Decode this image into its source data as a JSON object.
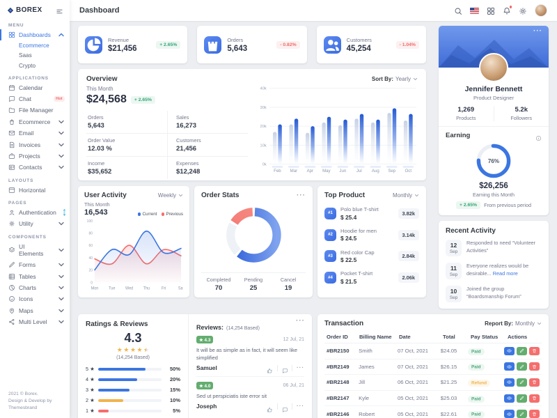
{
  "brand": {
    "name": "BOREX"
  },
  "topbar": {
    "title": "Dashboard"
  },
  "sidebar": {
    "sections": [
      {
        "label": "Menu",
        "items": [
          {
            "label": "Dashboards",
            "icon": "dashboards-icon",
            "active": true,
            "chevron": "up",
            "children": [
              {
                "label": "Ecommerce",
                "active": true
              },
              {
                "label": "Saas"
              },
              {
                "label": "Crypto"
              }
            ]
          }
        ]
      },
      {
        "label": "Applications",
        "items": [
          {
            "label": "Calendar",
            "icon": "calendar-icon"
          },
          {
            "label": "Chat",
            "icon": "chat-icon",
            "badge": "Hot"
          },
          {
            "label": "File Manager",
            "icon": "file-manager-icon"
          },
          {
            "label": "Ecommerce",
            "icon": "ecommerce-icon",
            "chevron": "down"
          },
          {
            "label": "Email",
            "icon": "email-icon",
            "chevron": "down"
          },
          {
            "label": "Invoices",
            "icon": "invoices-icon",
            "chevron": "down"
          },
          {
            "label": "Projects",
            "icon": "projects-icon",
            "chevron": "down"
          },
          {
            "label": "Contacts",
            "icon": "contacts-icon",
            "chevron": "down"
          }
        ]
      },
      {
        "label": "Layouts",
        "items": [
          {
            "label": "Horizontal",
            "icon": "horizontal-icon"
          }
        ]
      },
      {
        "label": "Pages",
        "items": [
          {
            "label": "Authentication",
            "icon": "authentication-icon",
            "count": "8"
          },
          {
            "label": "Utility",
            "icon": "utility-icon",
            "chevron": "down"
          }
        ]
      },
      {
        "label": "Components",
        "items": [
          {
            "label": "UI Elements",
            "icon": "ui-elements-icon",
            "chevron": "down"
          },
          {
            "label": "Forms",
            "icon": "forms-icon",
            "chevron": "down"
          },
          {
            "label": "Tables",
            "icon": "tables-icon",
            "chevron": "down"
          },
          {
            "label": "Charts",
            "icon": "charts-icon",
            "chevron": "down"
          },
          {
            "label": "Icons",
            "icon": "icons-icon",
            "chevron": "down"
          },
          {
            "label": "Maps",
            "icon": "maps-icon",
            "chevron": "down"
          },
          {
            "label": "Multi Level",
            "icon": "multi-level-icon",
            "chevron": "down"
          }
        ]
      }
    ],
    "footer": {
      "line1": "2021 © Borex.",
      "line2": "Design & Develop by Themesbrand"
    }
  },
  "stats": [
    {
      "label": "Revenue",
      "value": "$21,456",
      "delta": "+ 2.65%",
      "trend": "up",
      "icon": "revenue-icon"
    },
    {
      "label": "Orders",
      "value": "5,643",
      "delta": "- 0.82%",
      "trend": "down",
      "icon": "orders-icon"
    },
    {
      "label": "Customers",
      "value": "45,254",
      "delta": "- 1.04%",
      "trend": "down",
      "icon": "customers-icon"
    }
  ],
  "overview": {
    "title": "Overview",
    "sort_label": "Sort By:",
    "sort_value": "Yearly",
    "period_label": "This Month",
    "amount": "$24,568",
    "delta": "+ 2.65%",
    "metrics": [
      {
        "label": "Orders",
        "value": "5,643"
      },
      {
        "label": "Sales",
        "value": "16,273"
      },
      {
        "label": "Order Value",
        "value": "12.03 %"
      },
      {
        "label": "Customers",
        "value": "21,456"
      },
      {
        "label": "Income",
        "value": "$35,652"
      },
      {
        "label": "Expenses",
        "value": "$12,248"
      }
    ]
  },
  "user_activity": {
    "title": "User Activity",
    "filter": "Weekly",
    "period_label": "This Month",
    "value": "16,543"
  },
  "order_stats": {
    "title": "Order Stats",
    "legend": [
      {
        "label": "Completed",
        "value": "70"
      },
      {
        "label": "Pending",
        "value": "25"
      },
      {
        "label": "Cancel",
        "value": "19"
      }
    ]
  },
  "top_products": {
    "title": "Top Product",
    "filter": "Monthly",
    "items": [
      {
        "rank": "#1",
        "name": "Polo blue T-shirt",
        "price": "$ 25.4",
        "sales": "3.82k"
      },
      {
        "rank": "#2",
        "name": "Hoodie for men",
        "price": "$ 24.5",
        "sales": "3.14k"
      },
      {
        "rank": "#3",
        "name": "Red color Cap",
        "price": "$ 22.5",
        "sales": "2.84k"
      },
      {
        "rank": "#4",
        "name": "Pocket T-shirt",
        "price": "$ 21.5",
        "sales": "2.06k"
      }
    ]
  },
  "profile": {
    "name": "Jennifer Bennett",
    "role": "Product Designer",
    "stats": [
      {
        "value": "1,269",
        "label": "Products"
      },
      {
        "value": "5.2k",
        "label": "Followers"
      }
    ],
    "earning": {
      "title": "Earning",
      "percent_label": "76%",
      "amount": "$26,256",
      "caption": "Earning this Month",
      "delta": "+ 2.65%",
      "delta_caption": "From previous period"
    }
  },
  "recent_activity": {
    "title": "Recent Activity",
    "items": [
      {
        "day": "12",
        "month": "Sep",
        "text": "Responded to need “Volunteer Activities”",
        "link": ""
      },
      {
        "day": "11",
        "month": "Sep",
        "text": "Everyone realizes would be desirable... ",
        "link": "Read more"
      },
      {
        "day": "10",
        "month": "Sep",
        "text": "Joined the group “Boardsmanship Forum”",
        "link": ""
      }
    ]
  },
  "ratings": {
    "title": "Ratings & Reviews",
    "average": "4.3",
    "stars": 4.5,
    "based": "(14,254 Based)",
    "distribution": [
      {
        "star": "5",
        "percent": "50%",
        "fill": 0.75,
        "color": "#3b76e1"
      },
      {
        "star": "4",
        "percent": "20%",
        "fill": 0.62,
        "color": "#3b76e1"
      },
      {
        "star": "3",
        "percent": "15%",
        "fill": 0.5,
        "color": "#3b76e1"
      },
      {
        "star": "2",
        "percent": "10%",
        "fill": 0.4,
        "color": "#f1b44c"
      },
      {
        "star": "1",
        "percent": "5%",
        "fill": 0.17,
        "color": "#f56e6e"
      }
    ]
  },
  "reviews": {
    "label": "Reviews:",
    "based": "(14,254 Based)",
    "items": [
      {
        "rating": "4.3",
        "date": "12 Jul, 21",
        "text": "It will be as simple as in fact, it will seem like simplified",
        "author": "Samuel"
      },
      {
        "rating": "4.0",
        "date": "06 Jul, 21",
        "text": "Sed ut perspiciatis iste error sit",
        "author": "Joseph"
      }
    ]
  },
  "transactions": {
    "title": "Transaction",
    "report_label": "Report By:",
    "report_value": "Monthly",
    "columns": [
      "Order ID",
      "Billing Name",
      "Date",
      "Total",
      "Pay Status",
      "Actions"
    ],
    "rows": [
      {
        "id": "#BR2150",
        "name": "Smith",
        "date": "07 Oct, 2021",
        "total": "$24.05",
        "status": "Paid"
      },
      {
        "id": "#BR2149",
        "name": "James",
        "date": "07 Oct, 2021",
        "total": "$26.15",
        "status": "Paid"
      },
      {
        "id": "#BR2148",
        "name": "Jill",
        "date": "06 Oct, 2021",
        "total": "$21.25",
        "status": "Refund"
      },
      {
        "id": "#BR2147",
        "name": "Kyle",
        "date": "05 Oct, 2021",
        "total": "$25.03",
        "status": "Paid"
      },
      {
        "id": "#BR2146",
        "name": "Robert",
        "date": "05 Oct, 2021",
        "total": "$22.61",
        "status": "Paid"
      }
    ]
  },
  "chart_data": [
    {
      "id": "overview-bars",
      "type": "bar",
      "title": "Overview",
      "categories": [
        "Feb",
        "Mar",
        "Apr",
        "May",
        "Jun",
        "Jul",
        "Aug",
        "Sep",
        "Oct"
      ],
      "series": [
        {
          "name": "Previous",
          "values": [
            17000,
            21000,
            16500,
            22000,
            20500,
            24000,
            22000,
            27000,
            23000
          ]
        },
        {
          "name": "Current",
          "values": [
            21000,
            24000,
            20000,
            25000,
            23500,
            26500,
            23500,
            29500,
            26500
          ]
        }
      ],
      "ylim": [
        0,
        40000
      ],
      "yticks": [
        "0k",
        "10k",
        "20k",
        "30k",
        "40k"
      ],
      "grid": true
    },
    {
      "id": "user-activity",
      "type": "line",
      "x": [
        "Mon",
        "Tue",
        "Wed",
        "Thu",
        "Fri",
        "Sat"
      ],
      "series": [
        {
          "name": "Current",
          "color": "#3b76e1",
          "values": [
            20,
            53,
            45,
            83,
            48,
            55
          ]
        },
        {
          "name": "Previous",
          "color": "#f56e6e",
          "values": [
            38,
            30,
            60,
            30,
            53,
            43
          ]
        }
      ],
      "ylim": [
        0,
        100
      ],
      "yticks": [
        0,
        20,
        40,
        60,
        80,
        100
      ],
      "legend_position": "top-right"
    },
    {
      "id": "order-stats-donut",
      "type": "pie",
      "labels": [
        "Completed",
        "Pending",
        "Cancel"
      ],
      "values": [
        70,
        25,
        19
      ],
      "colors": [
        "#3b76e1",
        "#eef1f6",
        "#f56e6e"
      ]
    },
    {
      "id": "earning-donut",
      "type": "pie",
      "labels": [
        "Earned",
        "Remaining"
      ],
      "values": [
        76,
        24
      ],
      "colors": [
        "#3b76e1",
        "#ebeef4"
      ],
      "center_label": "76%"
    }
  ],
  "colors": {
    "primary": "#3b76e1",
    "success": "#4aa57a",
    "danger": "#f16a6a",
    "warning": "#f1b44c",
    "info": "#54c6ea"
  }
}
